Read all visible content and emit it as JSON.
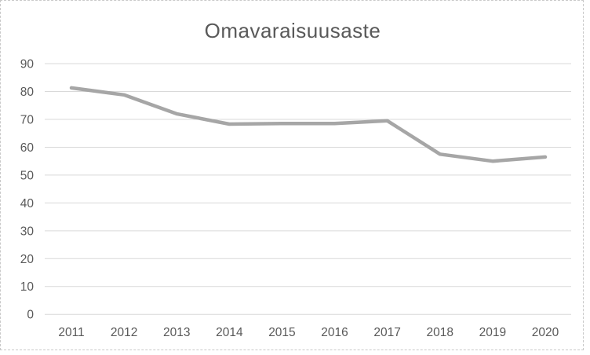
{
  "chart_data": {
    "type": "line",
    "title": "Omavaraisuusaste",
    "categories": [
      "2011",
      "2012",
      "2013",
      "2014",
      "2015",
      "2016",
      "2017",
      "2018",
      "2019",
      "2020"
    ],
    "series": [
      {
        "name": "Omavaraisuusaste",
        "values": [
          81.3,
          78.8,
          72.0,
          68.3,
          68.5,
          68.5,
          69.5,
          57.5,
          55.0,
          56.5
        ]
      }
    ],
    "xlabel": "",
    "ylabel": "",
    "ylim": [
      0,
      90
    ],
    "y_ticks": [
      0,
      10,
      20,
      30,
      40,
      50,
      60,
      70,
      80,
      90
    ],
    "grid": true,
    "legend": "none",
    "colors": {
      "line": "#a6a6a6",
      "gridline": "#d9d9d9",
      "axis_text": "#595959",
      "title_text": "#595959",
      "border": "#c9c9c9",
      "background": "#ffffff"
    }
  }
}
